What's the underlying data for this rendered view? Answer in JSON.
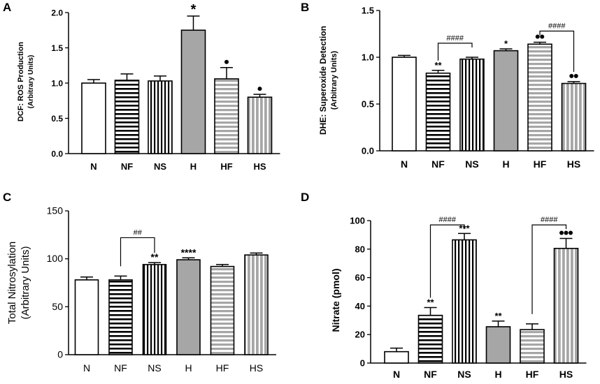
{
  "figure": {
    "panels": [
      "A",
      "B",
      "C",
      "D"
    ]
  },
  "colors": {
    "open": "#ffffff",
    "stroke": "#000000",
    "hypoxia": "#a6a6a6",
    "hypoxia_stripe": "#ffffff"
  },
  "chart_data": [
    {
      "panel": "A",
      "type": "bar",
      "ylabel_line1": "DCF: ROS Production",
      "ylabel_line2": "(Arbitrary Units)",
      "categories": [
        "N",
        "NF",
        "NS",
        "H",
        "HF",
        "HS"
      ],
      "values": [
        1.0,
        1.04,
        1.03,
        1.75,
        1.06,
        0.8
      ],
      "errors": [
        0.05,
        0.09,
        0.07,
        0.2,
        0.16,
        0.04
      ],
      "ylim": [
        0,
        2.0
      ],
      "ticks": [
        "0.0",
        "0.5",
        "1.0",
        "1.5",
        "2.0"
      ],
      "tick_values": [
        0,
        0.5,
        1.0,
        1.5,
        2.0
      ],
      "patterns": [
        "open",
        "hstripe",
        "vstripe",
        "gray",
        "gray-hstripe",
        "gray-vstripe"
      ],
      "bold_tick_labels": true,
      "annotations": [
        {
          "bar": 3,
          "text": "*",
          "kind": "star"
        },
        {
          "bar": 4,
          "count": 1,
          "kind": "dots"
        },
        {
          "bar": 5,
          "count": 1,
          "kind": "dots"
        }
      ],
      "brackets": []
    },
    {
      "panel": "B",
      "type": "bar",
      "ylabel_line1": "DHE: Superoxide Detection",
      "ylabel_line2": "(Arbitrary Units)",
      "categories": [
        "N",
        "NF",
        "NS",
        "H",
        "HF",
        "HS"
      ],
      "values": [
        1.0,
        0.83,
        0.98,
        1.07,
        1.14,
        0.72
      ],
      "errors": [
        0.02,
        0.03,
        0.02,
        0.02,
        0.02,
        0.02
      ],
      "ylim": [
        0,
        1.5
      ],
      "ticks": [
        "0.0",
        "0.5",
        "1.0",
        "1.5"
      ],
      "tick_values": [
        0,
        0.5,
        1.0,
        1.5
      ],
      "patterns": [
        "open",
        "hstripe",
        "vstripe",
        "gray",
        "gray-hstripe",
        "gray-vstripe"
      ],
      "bold_tick_labels": true,
      "annotations": [
        {
          "bar": 1,
          "text": "**",
          "kind": "star"
        },
        {
          "bar": 3,
          "text": "*",
          "kind": "star"
        },
        {
          "bar": 4,
          "count": 2,
          "kind": "dots"
        },
        {
          "bar": 5,
          "count": 2,
          "kind": "dots"
        }
      ],
      "brackets": [
        {
          "from": 1,
          "to": 2,
          "y": 1.15,
          "text": "####"
        },
        {
          "from": 4,
          "to": 5,
          "y": 1.28,
          "text": "####"
        }
      ]
    },
    {
      "panel": "C",
      "type": "bar",
      "ylabel_line1": "Total Nitrosylation",
      "ylabel_line2": "(Arbitrary Units)",
      "categories": [
        "N",
        "NF",
        "NS",
        "H",
        "HF",
        "HS"
      ],
      "values": [
        78,
        78,
        94,
        99,
        92,
        104
      ],
      "errors": [
        3,
        4,
        2,
        2,
        2,
        2
      ],
      "ylim": [
        0,
        150
      ],
      "ticks": [
        "0",
        "50",
        "100",
        "150"
      ],
      "tick_values": [
        0,
        50,
        100,
        150
      ],
      "patterns": [
        "open",
        "hstripe",
        "vstripe",
        "gray",
        "gray-hstripe",
        "gray-vstripe"
      ],
      "bold_tick_labels": false,
      "annotations": [
        {
          "bar": 2,
          "text": "**",
          "kind": "star"
        },
        {
          "bar": 3,
          "text": "****",
          "kind": "star"
        }
      ],
      "brackets": [
        {
          "from": 1,
          "to": 2,
          "y": 122,
          "text": "##"
        }
      ]
    },
    {
      "panel": "D",
      "type": "bar",
      "ylabel_line1": "Nitrate (pmol)",
      "ylabel_line2": "",
      "categories": [
        "N",
        "NF",
        "NS",
        "H",
        "HF",
        "HS"
      ],
      "values": [
        8,
        33.5,
        86.5,
        25.5,
        23.5,
        80.5
      ],
      "errors": [
        2.5,
        5.5,
        4.5,
        4,
        4,
        7
      ],
      "ylim": [
        0,
        100
      ],
      "ticks": [
        "0",
        "20",
        "40",
        "60",
        "80",
        "100"
      ],
      "tick_values": [
        0,
        20,
        40,
        60,
        80,
        100
      ],
      "patterns": [
        "open",
        "hstripe",
        "vstripe",
        "gray",
        "gray-hstripe",
        "gray-vstripe"
      ],
      "bold_tick_labels": true,
      "annotations": [
        {
          "bar": 1,
          "text": "**",
          "kind": "star"
        },
        {
          "bar": 2,
          "text": "***",
          "kind": "star"
        },
        {
          "bar": 3,
          "text": "**",
          "kind": "star"
        },
        {
          "bar": 5,
          "count": 3,
          "kind": "dots"
        }
      ],
      "brackets": [
        {
          "from": 1,
          "to": 2,
          "y": 97,
          "text": "####"
        },
        {
          "from": 4,
          "to": 5,
          "y": 97,
          "text": "####"
        }
      ]
    }
  ]
}
